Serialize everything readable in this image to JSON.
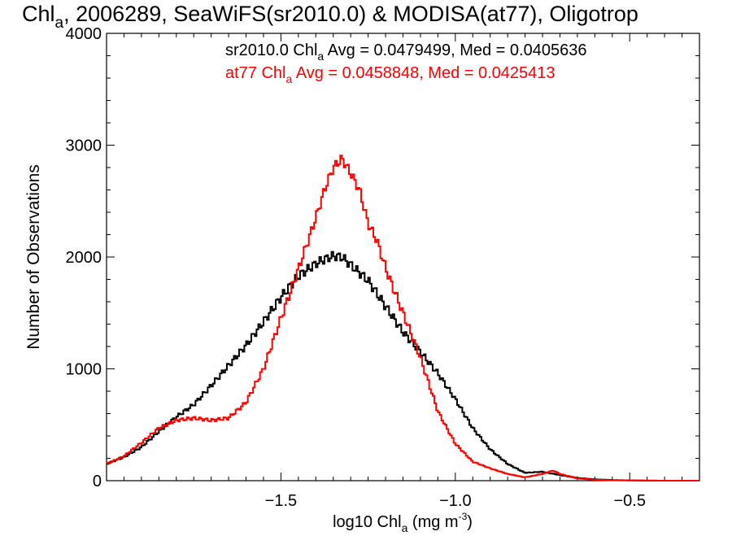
{
  "chart_data": {
    "type": "line",
    "title_main": "Chl",
    "title_sub": "a",
    "title_rest": ", 2006289, SeaWiFS(sr2010.0) & MODISA(at77), Oligotrop",
    "xlabel_main": "log10 Chl",
    "xlabel_sub": "a",
    "xlabel_rest": " (mg m",
    "xlabel_sup": "-3",
    "xlabel_end": ")",
    "ylabel": "Number of Observations",
    "xlim": [
      -2.0,
      -0.3
    ],
    "ylim": [
      0,
      4000
    ],
    "x_ticks": [
      -1.5,
      -1.0,
      -0.5
    ],
    "x_tick_labels": [
      "−1.5",
      "−1.0",
      "−0.5"
    ],
    "y_ticks": [
      0,
      1000,
      2000,
      3000,
      4000
    ],
    "y_tick_labels": [
      "0",
      "1000",
      "2000",
      "3000",
      "4000"
    ],
    "grid": false,
    "legend_position": "top-right",
    "series": [
      {
        "name": "sr2010.0",
        "color": "#000000",
        "label_prefix": "sr2010.0 Chl",
        "label_sub": "a",
        "label_stats": " Avg = 0.0479499, Med = 0.0405636",
        "points": [
          [
            -2.0,
            150
          ],
          [
            -1.95,
            210
          ],
          [
            -1.9,
            300
          ],
          [
            -1.85,
            440
          ],
          [
            -1.8,
            570
          ],
          [
            -1.75,
            680
          ],
          [
            -1.7,
            850
          ],
          [
            -1.65,
            1030
          ],
          [
            -1.6,
            1210
          ],
          [
            -1.55,
            1420
          ],
          [
            -1.5,
            1640
          ],
          [
            -1.45,
            1830
          ],
          [
            -1.4,
            1940
          ],
          [
            -1.375,
            1980
          ],
          [
            -1.35,
            2010
          ],
          [
            -1.325,
            2000
          ],
          [
            -1.3,
            1930
          ],
          [
            -1.25,
            1790
          ],
          [
            -1.2,
            1560
          ],
          [
            -1.15,
            1330
          ],
          [
            -1.1,
            1150
          ],
          [
            -1.05,
            960
          ],
          [
            -1.0,
            730
          ],
          [
            -0.95,
            470
          ],
          [
            -0.9,
            280
          ],
          [
            -0.85,
            150
          ],
          [
            -0.8,
            70
          ],
          [
            -0.75,
            80
          ],
          [
            -0.7,
            50
          ],
          [
            -0.65,
            25
          ],
          [
            -0.6,
            12
          ],
          [
            -0.55,
            6
          ],
          [
            -0.5,
            3
          ],
          [
            -0.45,
            1
          ],
          [
            -0.4,
            0
          ],
          [
            -0.3,
            0
          ]
        ]
      },
      {
        "name": "at77",
        "color": "#ff0000",
        "label_prefix": "at77 Chl",
        "label_sub": "a",
        "label_stats": " Avg = 0.0458848, Med = 0.0425413",
        "points": [
          [
            -2.0,
            150
          ],
          [
            -1.95,
            220
          ],
          [
            -1.9,
            340
          ],
          [
            -1.85,
            470
          ],
          [
            -1.8,
            540
          ],
          [
            -1.75,
            560
          ],
          [
            -1.7,
            540
          ],
          [
            -1.65,
            560
          ],
          [
            -1.6,
            700
          ],
          [
            -1.55,
            1000
          ],
          [
            -1.5,
            1450
          ],
          [
            -1.45,
            1890
          ],
          [
            -1.4,
            2350
          ],
          [
            -1.375,
            2600
          ],
          [
            -1.35,
            2800
          ],
          [
            -1.325,
            2880
          ],
          [
            -1.3,
            2750
          ],
          [
            -1.275,
            2600
          ],
          [
            -1.25,
            2300
          ],
          [
            -1.225,
            2150
          ],
          [
            -1.2,
            1900
          ],
          [
            -1.15,
            1500
          ],
          [
            -1.1,
            1100
          ],
          [
            -1.05,
            620
          ],
          [
            -1.0,
            330
          ],
          [
            -0.95,
            170
          ],
          [
            -0.9,
            110
          ],
          [
            -0.85,
            60
          ],
          [
            -0.8,
            30
          ],
          [
            -0.75,
            60
          ],
          [
            -0.72,
            90
          ],
          [
            -0.7,
            60
          ],
          [
            -0.65,
            20
          ],
          [
            -0.6,
            8
          ],
          [
            -0.55,
            4
          ],
          [
            -0.5,
            2
          ],
          [
            -0.45,
            1
          ],
          [
            -0.4,
            0
          ],
          [
            -0.3,
            0
          ]
        ]
      }
    ]
  }
}
